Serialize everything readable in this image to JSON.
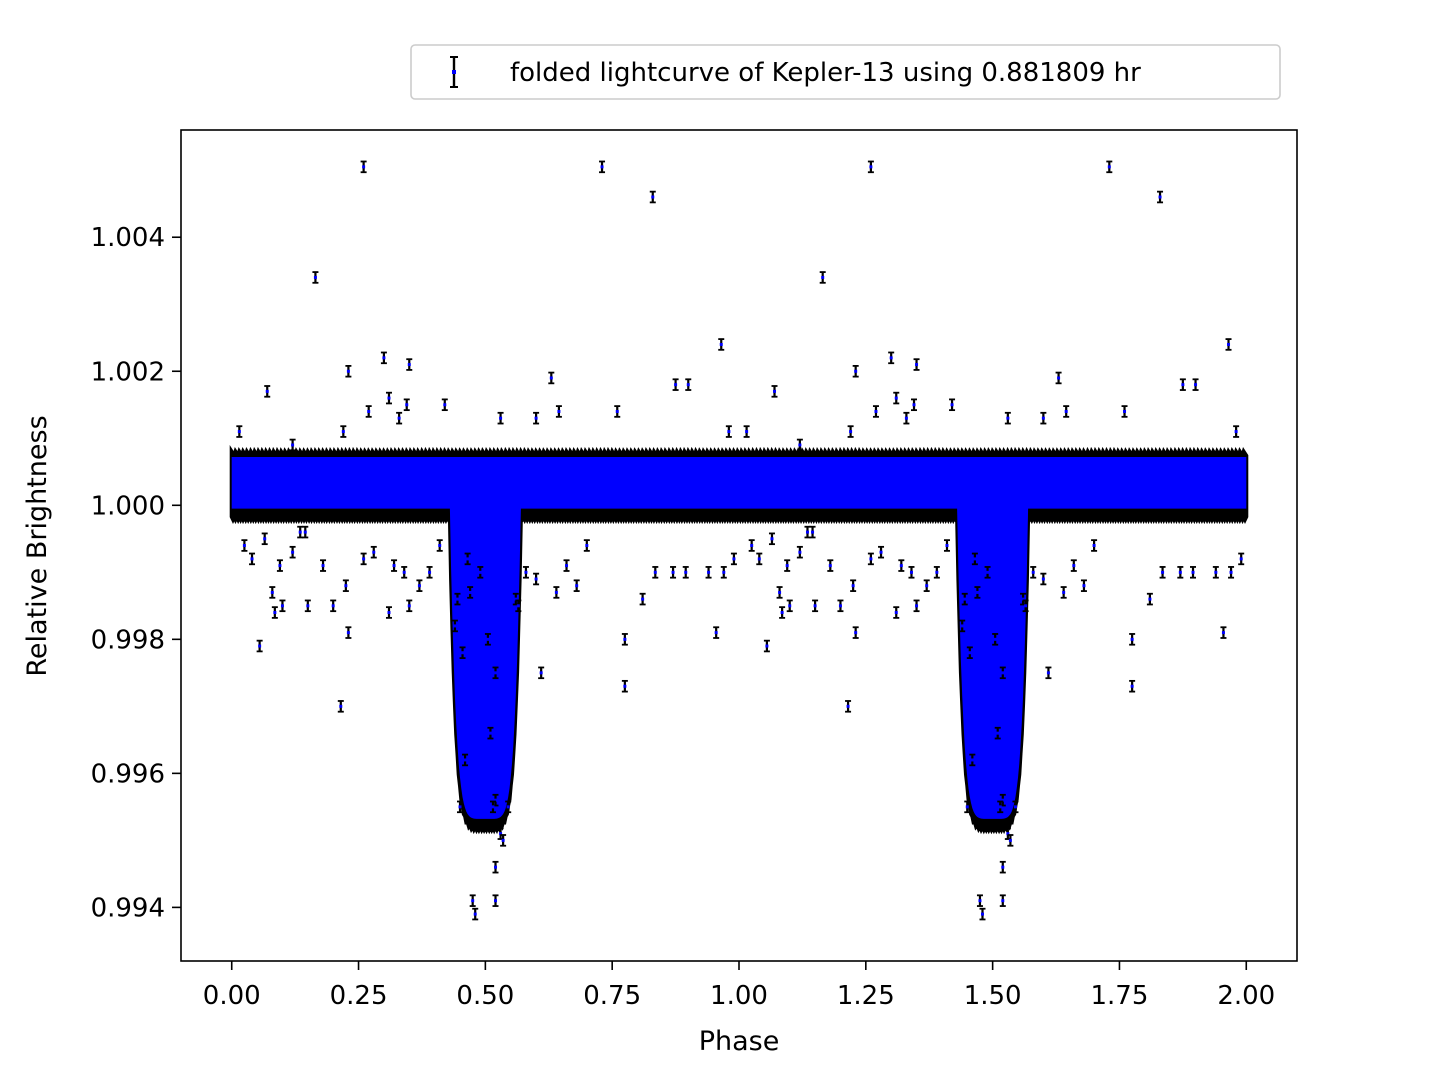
{
  "chart_data": {
    "type": "scatter",
    "xlabel": "Phase",
    "ylabel": "Relative Brightness",
    "xlim": [
      -0.1,
      2.1
    ],
    "ylim": [
      0.9932,
      1.0056
    ],
    "x_ticks": [
      0.0,
      0.25,
      0.5,
      0.75,
      1.0,
      1.25,
      1.5,
      1.75,
      2.0
    ],
    "x_tick_labels": [
      "0.00",
      "0.25",
      "0.50",
      "0.75",
      "1.00",
      "1.25",
      "1.50",
      "1.75",
      "2.00"
    ],
    "y_ticks": [
      0.994,
      0.996,
      0.998,
      1.0,
      1.002,
      1.004
    ],
    "y_tick_labels": [
      "0.994",
      "0.996",
      "0.998",
      "1.000",
      "1.002",
      "1.004"
    ],
    "grid": false,
    "legend_position": "above-right",
    "series": [
      {
        "name": "folded lightcurve of Kepler-13 using 0.881809 hr",
        "marker_color": "#0000ff",
        "errorbar_color": "#000000",
        "baseline_band": {
          "x_range": [
            0.0,
            2.0
          ],
          "y_range": [
            0.99983,
            1.0008
          ]
        },
        "transit_dips": [
          {
            "center_phase": 0.5,
            "duration_phase": 0.14,
            "y_min": 0.9952,
            "y_max_bottom": 0.9962
          },
          {
            "center_phase": 1.5,
            "duration_phase": 0.14,
            "y_min": 0.9952,
            "y_max_bottom": 0.9962
          }
        ],
        "points": [
          [
            0.26,
            1.00505
          ],
          [
            0.73,
            1.00505
          ],
          [
            0.83,
            1.0046
          ],
          [
            1.26,
            1.00505
          ],
          [
            1.73,
            1.00505
          ],
          [
            1.83,
            1.0046
          ],
          [
            0.165,
            1.0034
          ],
          [
            1.165,
            1.0034
          ],
          [
            0.965,
            1.0024
          ],
          [
            1.965,
            1.0024
          ],
          [
            0.3,
            1.0022
          ],
          [
            0.35,
            1.0021
          ],
          [
            0.23,
            1.002
          ],
          [
            1.3,
            1.0022
          ],
          [
            1.35,
            1.0021
          ],
          [
            1.23,
            1.002
          ],
          [
            0.07,
            1.0017
          ],
          [
            0.63,
            1.0019
          ],
          [
            0.875,
            1.0018
          ],
          [
            0.9,
            1.0018
          ],
          [
            1.07,
            1.0017
          ],
          [
            1.63,
            1.0019
          ],
          [
            1.875,
            1.0018
          ],
          [
            1.9,
            1.0018
          ],
          [
            0.31,
            1.0016
          ],
          [
            0.42,
            1.0015
          ],
          [
            0.345,
            1.0015
          ],
          [
            1.31,
            1.0016
          ],
          [
            1.42,
            1.0015
          ],
          [
            1.345,
            1.0015
          ],
          [
            0.27,
            1.0014
          ],
          [
            0.645,
            1.0014
          ],
          [
            0.76,
            1.0014
          ],
          [
            1.27,
            1.0014
          ],
          [
            1.645,
            1.0014
          ],
          [
            1.76,
            1.0014
          ],
          [
            0.53,
            1.0013
          ],
          [
            0.6,
            1.0013
          ],
          [
            0.33,
            1.0013
          ],
          [
            0.015,
            1.0011
          ],
          [
            0.12,
            1.0009
          ],
          [
            0.22,
            1.0011
          ],
          [
            0.98,
            1.0011
          ],
          [
            1.53,
            1.0013
          ],
          [
            1.6,
            1.0013
          ],
          [
            1.33,
            1.0013
          ],
          [
            1.015,
            1.0011
          ],
          [
            1.12,
            1.0009
          ],
          [
            1.22,
            1.0011
          ],
          [
            1.98,
            1.0011
          ],
          [
            0.025,
            0.9994
          ],
          [
            0.04,
            0.9992
          ],
          [
            0.065,
            0.9995
          ],
          [
            0.08,
            0.9987
          ],
          [
            0.085,
            0.9984
          ],
          [
            0.095,
            0.9991
          ],
          [
            0.1,
            0.9985
          ],
          [
            0.12,
            0.9993
          ],
          [
            0.135,
            0.9996
          ],
          [
            0.145,
            0.9996
          ],
          [
            0.15,
            0.9985
          ],
          [
            0.18,
            0.9991
          ],
          [
            0.2,
            0.9985
          ],
          [
            0.225,
            0.9988
          ],
          [
            0.23,
            0.9981
          ],
          [
            0.215,
            0.997
          ],
          [
            0.26,
            0.9992
          ],
          [
            0.28,
            0.9993
          ],
          [
            0.31,
            0.9984
          ],
          [
            0.32,
            0.9991
          ],
          [
            0.34,
            0.999
          ],
          [
            0.35,
            0.9985
          ],
          [
            0.37,
            0.9988
          ],
          [
            0.39,
            0.999
          ],
          [
            0.41,
            0.9994
          ],
          [
            0.055,
            0.9979
          ],
          [
            0.445,
            0.9986
          ],
          [
            0.44,
            0.9982
          ],
          [
            0.455,
            0.9978
          ],
          [
            0.465,
            0.9992
          ],
          [
            0.47,
            0.9987
          ],
          [
            0.49,
            0.999
          ],
          [
            0.505,
            0.998
          ],
          [
            0.52,
            0.9975
          ],
          [
            0.52,
            0.9956
          ],
          [
            0.515,
            0.9955
          ],
          [
            0.51,
            0.9966
          ],
          [
            0.53,
            0.9951
          ],
          [
            0.535,
            0.995
          ],
          [
            0.545,
            0.9955
          ],
          [
            0.52,
            0.9946
          ],
          [
            0.475,
            0.9941
          ],
          [
            0.48,
            0.9939
          ],
          [
            0.52,
            0.9941
          ],
          [
            0.45,
            0.9955
          ],
          [
            0.46,
            0.9962
          ],
          [
            0.56,
            0.9986
          ],
          [
            0.565,
            0.9985
          ],
          [
            0.58,
            0.999
          ],
          [
            0.6,
            0.9989
          ],
          [
            0.61,
            0.9975
          ],
          [
            0.64,
            0.9987
          ],
          [
            0.66,
            0.9991
          ],
          [
            0.68,
            0.9988
          ],
          [
            0.7,
            0.9994
          ],
          [
            0.775,
            0.998
          ],
          [
            0.775,
            0.9973
          ],
          [
            0.81,
            0.9986
          ],
          [
            0.835,
            0.999
          ],
          [
            0.87,
            0.999
          ],
          [
            0.895,
            0.999
          ],
          [
            0.94,
            0.999
          ],
          [
            0.955,
            0.9981
          ],
          [
            0.97,
            0.999
          ],
          [
            0.99,
            0.9992
          ],
          [
            1.025,
            0.9994
          ],
          [
            1.04,
            0.9992
          ],
          [
            1.065,
            0.9995
          ],
          [
            1.08,
            0.9987
          ],
          [
            1.085,
            0.9984
          ],
          [
            1.095,
            0.9991
          ],
          [
            1.1,
            0.9985
          ],
          [
            1.12,
            0.9993
          ],
          [
            1.135,
            0.9996
          ],
          [
            1.145,
            0.9996
          ],
          [
            1.15,
            0.9985
          ],
          [
            1.18,
            0.9991
          ],
          [
            1.2,
            0.9985
          ],
          [
            1.225,
            0.9988
          ],
          [
            1.23,
            0.9981
          ],
          [
            1.215,
            0.997
          ],
          [
            1.26,
            0.9992
          ],
          [
            1.28,
            0.9993
          ],
          [
            1.31,
            0.9984
          ],
          [
            1.32,
            0.9991
          ],
          [
            1.34,
            0.999
          ],
          [
            1.35,
            0.9985
          ],
          [
            1.37,
            0.9988
          ],
          [
            1.39,
            0.999
          ],
          [
            1.41,
            0.9994
          ],
          [
            1.055,
            0.9979
          ],
          [
            1.445,
            0.9986
          ],
          [
            1.44,
            0.9982
          ],
          [
            1.455,
            0.9978
          ],
          [
            1.465,
            0.9992
          ],
          [
            1.47,
            0.9987
          ],
          [
            1.49,
            0.999
          ],
          [
            1.505,
            0.998
          ],
          [
            1.52,
            0.9975
          ],
          [
            1.52,
            0.9956
          ],
          [
            1.515,
            0.9955
          ],
          [
            1.51,
            0.9966
          ],
          [
            1.53,
            0.9951
          ],
          [
            1.535,
            0.995
          ],
          [
            1.545,
            0.9955
          ],
          [
            1.52,
            0.9946
          ],
          [
            1.475,
            0.9941
          ],
          [
            1.48,
            0.9939
          ],
          [
            1.52,
            0.9941
          ],
          [
            1.45,
            0.9955
          ],
          [
            1.46,
            0.9962
          ],
          [
            1.56,
            0.9986
          ],
          [
            1.565,
            0.9985
          ],
          [
            1.58,
            0.999
          ],
          [
            1.6,
            0.9989
          ],
          [
            1.61,
            0.9975
          ],
          [
            1.64,
            0.9987
          ],
          [
            1.66,
            0.9991
          ],
          [
            1.68,
            0.9988
          ],
          [
            1.7,
            0.9994
          ],
          [
            1.775,
            0.998
          ],
          [
            1.775,
            0.9973
          ],
          [
            1.81,
            0.9986
          ],
          [
            1.835,
            0.999
          ],
          [
            1.87,
            0.999
          ],
          [
            1.895,
            0.999
          ],
          [
            1.94,
            0.999
          ],
          [
            1.955,
            0.9981
          ],
          [
            1.97,
            0.999
          ],
          [
            1.99,
            0.9992
          ]
        ]
      }
    ]
  }
}
